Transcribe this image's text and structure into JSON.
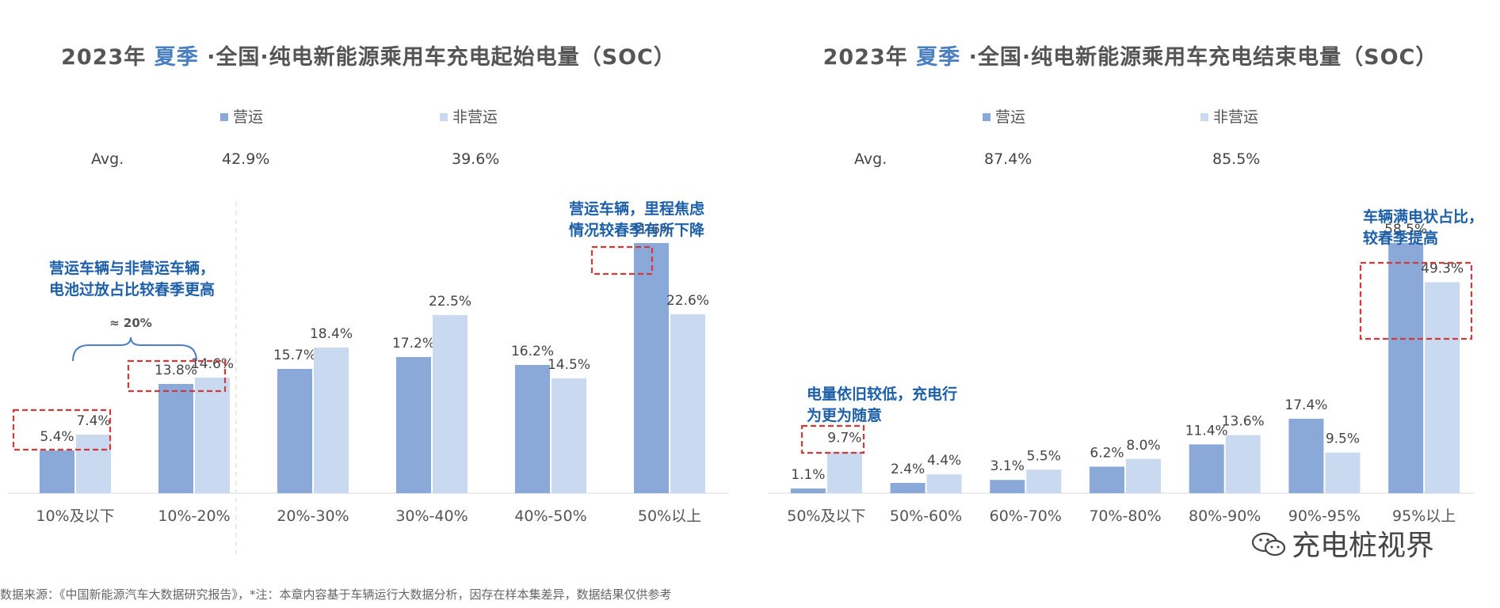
{
  "colors": {
    "operating": "#8aa8d8",
    "non_operating": "#c9d9f0",
    "highlight_text": "#1d5fa8",
    "dash_box": "#d23a3a",
    "title_accent": "#4a7fc1"
  },
  "chart_data": [
    {
      "type": "bar",
      "title": "2023年 夏季 ·全国·纯电新能源乘用车充电起始电量（SOC）",
      "title_parts": {
        "year": "2023年",
        "season": "夏季",
        "rest": "·全国·纯电新能源乘用车充电起始电量（SOC）"
      },
      "legend": [
        "营运",
        "非营运"
      ],
      "avg_label": "Avg.",
      "avg_values": [
        "42.9%",
        "39.6%"
      ],
      "categories": [
        "10%及以下",
        "10%-20%",
        "20%-30%",
        "30%-40%",
        "40%-50%",
        "50%以上"
      ],
      "series": [
        {
          "name": "营运",
          "values": [
            5.4,
            13.8,
            15.7,
            17.2,
            16.2,
            31.6
          ]
        },
        {
          "name": "非营运",
          "values": [
            7.4,
            14.6,
            18.4,
            22.5,
            14.5,
            22.6
          ]
        }
      ],
      "value_labels": [
        [
          "5.4%",
          "13.8%",
          "15.7%",
          "17.2%",
          "16.2%",
          "31.6%"
        ],
        [
          "7.4%",
          "14.6%",
          "18.4%",
          "22.5%",
          "14.5%",
          "22.6%"
        ]
      ],
      "ylim": [
        0,
        40
      ],
      "annotations": [
        {
          "text": "营运车辆与非营运车辆，\n电池过放占比较春季更高"
        },
        {
          "text": "≈ 20%"
        },
        {
          "text": "营运车辆，里程焦虑\n情况较春季有所下降"
        }
      ]
    },
    {
      "type": "bar",
      "title": "2023年 夏季 ·全国·纯电新能源乘用车充电结束电量（SOC）",
      "title_parts": {
        "year": "2023年",
        "season": "夏季",
        "rest": "·全国·纯电新能源乘用车充电结束电量（SOC）"
      },
      "legend": [
        "营运",
        "非营运"
      ],
      "avg_label": "Avg.",
      "avg_values": [
        "87.4%",
        "85.5%"
      ],
      "categories": [
        "50%及以下",
        "50%-60%",
        "60%-70%",
        "70%-80%",
        "80%-90%",
        "90%-95%",
        "95%以上"
      ],
      "series": [
        {
          "name": "营运",
          "values": [
            1.1,
            2.4,
            3.1,
            6.2,
            11.4,
            17.4,
            58.5
          ]
        },
        {
          "name": "非营运",
          "values": [
            9.7,
            4.4,
            5.5,
            8.0,
            13.6,
            9.5,
            49.3
          ]
        }
      ],
      "value_labels": [
        [
          "1.1%",
          "2.4%",
          "3.1%",
          "6.2%",
          "11.4%",
          "17.4%",
          "58.5%"
        ],
        [
          "9.7%",
          "4.4%",
          "5.5%",
          "8.0%",
          "13.6%",
          "9.5%",
          "49.3%"
        ]
      ],
      "ylim": [
        0,
        74
      ],
      "annotations": [
        {
          "text": "电量依旧较低，充电行\n为更为随意"
        },
        {
          "text": "车辆满电状占比，\n较春季提高"
        }
      ]
    }
  ],
  "footnote": "数据来源：《中国新能源汽车大数据研究报告》，*注：本章内容基于车辆运行大数据分析，因存在样本集差异，数据结果仅供参考",
  "watermark": "充电桩视界"
}
